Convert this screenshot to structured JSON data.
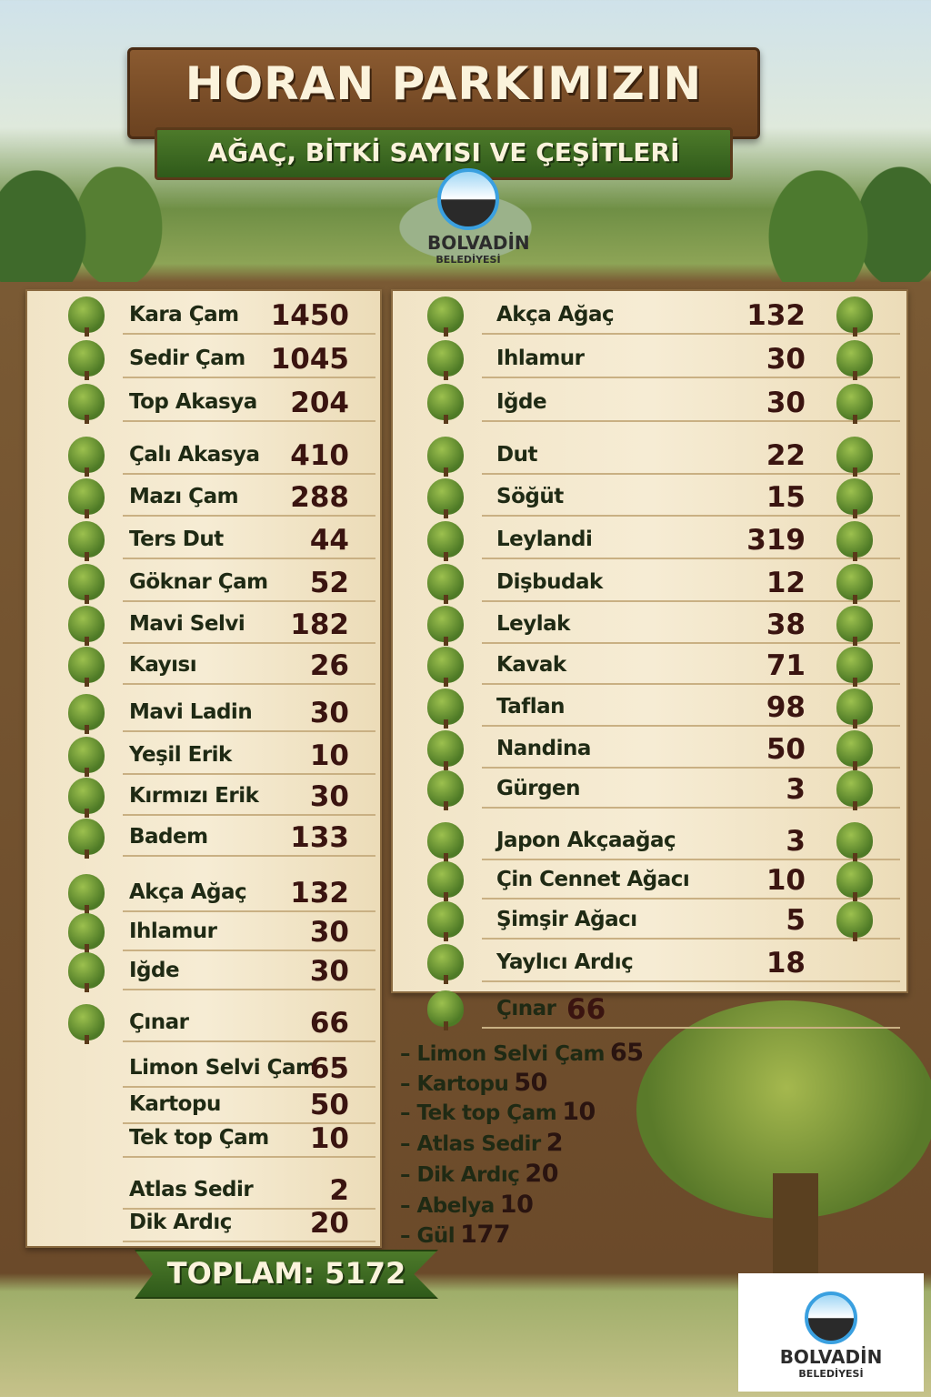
{
  "header": {
    "title": "HORAN PARKIMIZIN",
    "subtitle": "AĞAÇ, BİTKİ SAYISI VE ÇEŞİTLERİ"
  },
  "logo": {
    "name": "BOLVADİN",
    "sub": "BELEDİYESİ"
  },
  "left_items": [
    {
      "name": "Kara Çam",
      "count": "1450"
    },
    {
      "name": "Sedir Çam",
      "count": "1045"
    },
    {
      "name": "Top Akasya",
      "count": "204"
    },
    {
      "name": "Çalı Akasya",
      "count": "410"
    },
    {
      "name": "Mazı Çam",
      "count": "288"
    },
    {
      "name": "Ters Dut",
      "count": "44"
    },
    {
      "name": "Göknar Çam",
      "count": "52"
    },
    {
      "name": "Mavi Selvi",
      "count": "182"
    },
    {
      "name": "Kayısı",
      "count": "26"
    },
    {
      "name": "Mavi Ladin",
      "count": "30"
    },
    {
      "name": "Yeşil Erik",
      "count": "10"
    },
    {
      "name": "Kırmızı Erik",
      "count": "30"
    },
    {
      "name": "Badem",
      "count": "133"
    },
    {
      "name": "Akça Ağaç",
      "count": "132"
    },
    {
      "name": "Ihlamur",
      "count": "30"
    },
    {
      "name": "Iğde",
      "count": "30"
    },
    {
      "name": "Çınar",
      "count": "66"
    },
    {
      "name": "Limon Selvi Çam",
      "count": "65"
    },
    {
      "name": "Kartopu",
      "count": "50"
    },
    {
      "name": "Tek top Çam",
      "count": "10"
    },
    {
      "name": "Atlas Sedir",
      "count": "2"
    },
    {
      "name": "Dik Ardıç",
      "count": "20"
    }
  ],
  "right_items": [
    {
      "name": "Akça Ağaç",
      "count": "132"
    },
    {
      "name": "Ihlamur",
      "count": "30"
    },
    {
      "name": "Iğde",
      "count": "30"
    },
    {
      "name": "Dut",
      "count": "22"
    },
    {
      "name": "Söğüt",
      "count": "15"
    },
    {
      "name": "Leylandi",
      "count": "319"
    },
    {
      "name": "Dişbudak",
      "count": "12"
    },
    {
      "name": "Leylak",
      "count": "38"
    },
    {
      "name": "Kavak",
      "count": "71"
    },
    {
      "name": "Taflan",
      "count": "98"
    },
    {
      "name": "Nandina",
      "count": "50"
    },
    {
      "name": "Gürgen",
      "count": "3"
    },
    {
      "name": "Japon Akçaağaç",
      "count": "3"
    },
    {
      "name": "Çin Cennet Ağacı",
      "count": "10"
    },
    {
      "name": "Şimşir Ağacı",
      "count": "5"
    },
    {
      "name": "Yaylıcı Ardıç",
      "count": "18"
    },
    {
      "name": "Çınar",
      "count": "66"
    }
  ],
  "dash_items": [
    {
      "name": "– Limon Selvi Çam",
      "count": "65"
    },
    {
      "name": "– Kartopu",
      "count": "50"
    },
    {
      "name": "– Tek top Çam",
      "count": "10"
    },
    {
      "name": "– Atlas Sedir",
      "count": "2"
    },
    {
      "name": "– Dik Ardıç",
      "count": "20"
    },
    {
      "name": "– Abelya",
      "count": "10"
    },
    {
      "name": "– Gül",
      "count": "177"
    }
  ],
  "total": "TOPLAM: 5172",
  "colors": {
    "wood": "#6b4220",
    "green_banner": "#3d6a22",
    "parchment": "#f3e7cb",
    "number": "#3a1410"
  }
}
